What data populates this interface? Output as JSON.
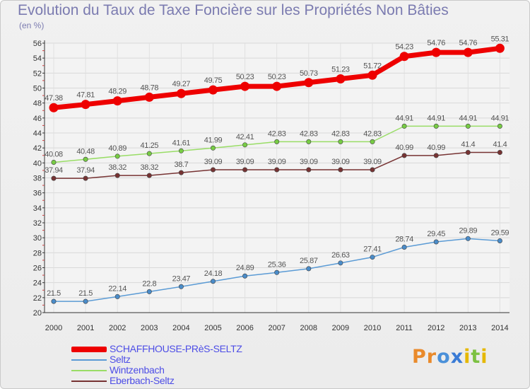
{
  "title": "Evolution du Taux de Taxe Foncière sur les Propriétés Non Bâties",
  "unit_label": "(en %)",
  "logo": {
    "text": "Proxiti",
    "letters": [
      "P",
      "r",
      "o",
      "x",
      "i",
      "t",
      "i"
    ],
    "colors": [
      "#e98a2b",
      "#e98a2b",
      "#4a90d9",
      "#3a7bd5",
      "#e5b800",
      "#7cc142",
      "#e5b800"
    ]
  },
  "chart_data": {
    "type": "line",
    "title": "Evolution du Taux de Taxe Foncière sur les Propriétés Non Bâties",
    "ylabel": "(en %)",
    "xlabel": "",
    "ylim": [
      20,
      56
    ],
    "yticks": [
      "20",
      "22",
      "24",
      "26",
      "28",
      "30",
      "32",
      "34",
      "36",
      "38",
      "40",
      "42",
      "44",
      "46",
      "48",
      "50",
      "52",
      "54",
      "56"
    ],
    "categories": [
      "2000",
      "2001",
      "2002",
      "2003",
      "2004",
      "2005",
      "2006",
      "2007",
      "2008",
      "2009",
      "2010",
      "2011",
      "2012",
      "2013",
      "2014"
    ],
    "grid": true,
    "legend": "bottom-left",
    "series": [
      {
        "name": "SCHAFFHOUSE-PRèS-SELTZ",
        "color": "#ee0000",
        "thick": true,
        "values": [
          47.38,
          47.81,
          48.29,
          48.78,
          49.27,
          49.75,
          50.23,
          50.23,
          50.73,
          51.23,
          51.72,
          54.23,
          54.76,
          54.76,
          55.31
        ],
        "labels": [
          "47.38",
          "47.81",
          "48.29",
          "48.78",
          "49.27",
          "49.75",
          "50.23",
          "50.23",
          "50.73",
          "51.23",
          "51.72",
          "54.23",
          "54.76",
          "54.76",
          "55.31"
        ]
      },
      {
        "name": "Seltz",
        "color": "#5b9bd5",
        "point": "#4a8cc9",
        "values": [
          21.5,
          21.5,
          22.14,
          22.8,
          23.47,
          24.18,
          24.89,
          25.36,
          25.87,
          26.63,
          27.41,
          28.74,
          29.45,
          29.89,
          29.59
        ],
        "labels": [
          "21.5",
          "21.5",
          "22.14",
          "22.8",
          "23.47",
          "24.18",
          "24.89",
          "25.36",
          "25.87",
          "26.63",
          "27.41",
          "28.74",
          "29.45",
          "29.89",
          "29.59"
        ]
      },
      {
        "name": "Wintzenbach",
        "color": "#99dd66",
        "point": "#77cc44",
        "values": [
          40.08,
          40.48,
          40.89,
          41.25,
          41.61,
          41.99,
          42.41,
          42.83,
          42.83,
          42.83,
          42.83,
          44.91,
          44.91,
          44.91,
          44.91
        ],
        "labels": [
          "40.08",
          "40.48",
          "40.89",
          "41.25",
          "41.61",
          "41.99",
          "42.41",
          "42.83",
          "42.83",
          "42.83",
          "42.83",
          "44.91",
          "44.91",
          "44.91",
          "44.91"
        ]
      },
      {
        "name": "Eberbach-Seltz",
        "color": "#773333",
        "point": "#773333",
        "values": [
          37.94,
          37.94,
          38.32,
          38.32,
          38.7,
          39.09,
          39.09,
          39.09,
          39.09,
          39.09,
          39.09,
          40.99,
          40.99,
          41.4,
          41.4
        ],
        "labels": [
          "37.94",
          "37.94",
          "38.32",
          "38.32",
          "38.7",
          "39.09",
          "39.09",
          "39.09",
          "39.09",
          "39.09",
          "39.09",
          "40.99",
          "40.99",
          "41.4",
          "41.4"
        ]
      }
    ]
  }
}
